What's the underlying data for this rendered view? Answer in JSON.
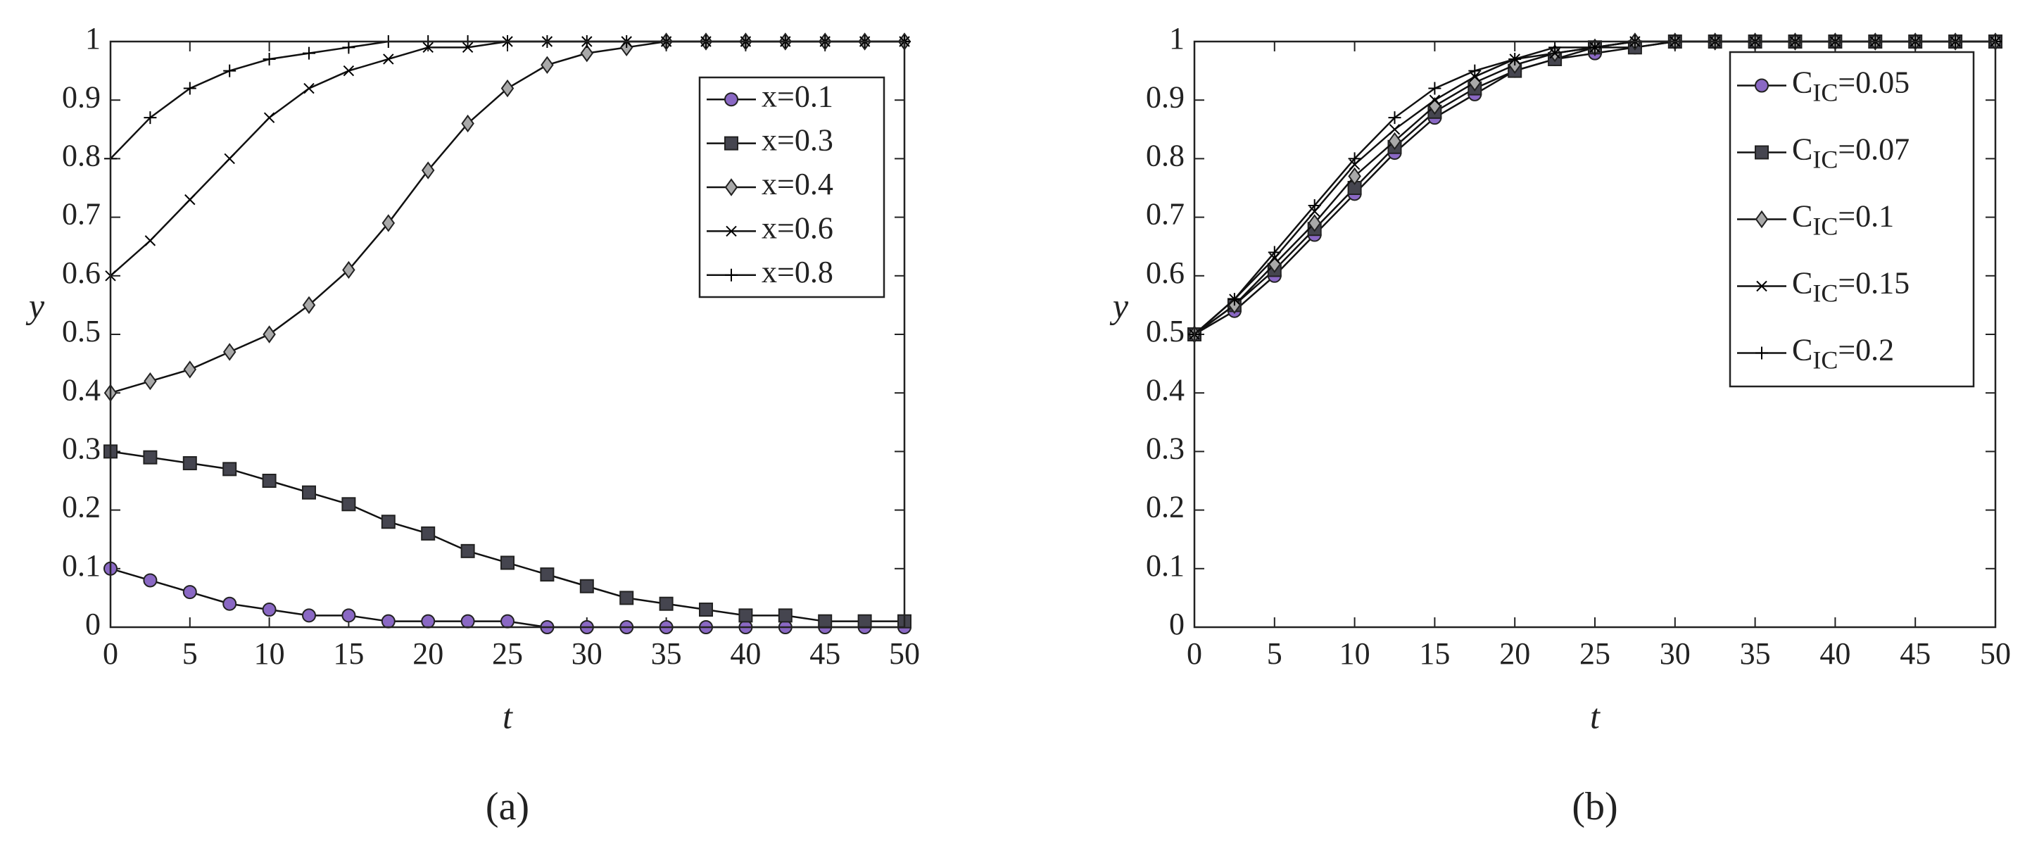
{
  "chart_data": [
    {
      "type": "line",
      "panel_label": "(a)",
      "xlabel": "t",
      "ylabel": "y",
      "x": [
        0,
        2.5,
        5,
        7.5,
        10,
        12.5,
        15,
        17.5,
        20,
        22.5,
        25,
        27.5,
        30,
        32.5,
        35,
        37.5,
        40,
        42.5,
        45,
        47.5,
        50
      ],
      "xlim": [
        0,
        50
      ],
      "xticks": [
        0,
        5,
        10,
        15,
        20,
        25,
        30,
        35,
        40,
        45,
        50
      ],
      "ylim": [
        0,
        1
      ],
      "yticks": [
        0,
        0.1,
        0.2,
        0.3,
        0.4,
        0.5,
        0.6,
        0.7,
        0.8,
        0.9,
        1
      ],
      "legend": "upper right",
      "series": [
        {
          "name": "x=0.1",
          "color": "#8a68c4",
          "marker": "circle",
          "values": [
            0.1,
            0.08,
            0.06,
            0.04,
            0.03,
            0.02,
            0.02,
            0.01,
            0.01,
            0.01,
            0.01,
            0,
            0,
            0,
            0,
            0,
            0,
            0,
            0,
            0,
            0
          ]
        },
        {
          "name": "x=0.3",
          "color": "#45454f",
          "marker": "square",
          "values": [
            0.3,
            0.29,
            0.28,
            0.27,
            0.25,
            0.23,
            0.21,
            0.18,
            0.16,
            0.13,
            0.11,
            0.09,
            0.07,
            0.05,
            0.04,
            0.03,
            0.02,
            0.02,
            0.01,
            0.01,
            0.01
          ]
        },
        {
          "name": "x=0.4",
          "color": "#a9a9a9",
          "marker": "diamond",
          "values": [
            0.4,
            0.42,
            0.44,
            0.47,
            0.5,
            0.55,
            0.61,
            0.69,
            0.78,
            0.86,
            0.92,
            0.96,
            0.98,
            0.99,
            1,
            1,
            1,
            1,
            1,
            1,
            1
          ]
        },
        {
          "name": "x=0.6",
          "color": "#000000",
          "marker": "x",
          "values": [
            0.6,
            0.66,
            0.73,
            0.8,
            0.87,
            0.92,
            0.95,
            0.97,
            0.99,
            0.99,
            1,
            1,
            1,
            1,
            1,
            1,
            1,
            1,
            1,
            1,
            1
          ]
        },
        {
          "name": "x=0.8",
          "color": "#000000",
          "marker": "plus",
          "values": [
            0.8,
            0.87,
            0.92,
            0.95,
            0.97,
            0.98,
            0.99,
            1,
            1,
            1,
            1,
            1,
            1,
            1,
            1,
            1,
            1,
            1,
            1,
            1,
            1
          ]
        }
      ]
    },
    {
      "type": "line",
      "panel_label": "(b)",
      "xlabel": "t",
      "ylabel": "y",
      "x": [
        0,
        2.5,
        5,
        7.5,
        10,
        12.5,
        15,
        17.5,
        20,
        22.5,
        25,
        27.5,
        30,
        32.5,
        35,
        37.5,
        40,
        42.5,
        45,
        47.5,
        50
      ],
      "xlim": [
        0,
        50
      ],
      "xticks": [
        0,
        5,
        10,
        15,
        20,
        25,
        30,
        35,
        40,
        45,
        50
      ],
      "ylim": [
        0,
        1
      ],
      "yticks": [
        0,
        0.1,
        0.2,
        0.3,
        0.4,
        0.5,
        0.6,
        0.7,
        0.8,
        0.9,
        1
      ],
      "legend": "upper right",
      "series": [
        {
          "name": "CIC=0.05",
          "color": "#8a68c4",
          "marker": "circle",
          "values": [
            0.5,
            0.54,
            0.6,
            0.67,
            0.74,
            0.81,
            0.87,
            0.91,
            0.95,
            0.97,
            0.98,
            0.99,
            1,
            1,
            1,
            1,
            1,
            1,
            1,
            1,
            1
          ]
        },
        {
          "name": "CIC=0.07",
          "color": "#45454f",
          "marker": "square",
          "values": [
            0.5,
            0.55,
            0.61,
            0.68,
            0.75,
            0.82,
            0.88,
            0.92,
            0.95,
            0.97,
            0.99,
            0.99,
            1,
            1,
            1,
            1,
            1,
            1,
            1,
            1,
            1
          ]
        },
        {
          "name": "CIC=0.1",
          "color": "#a9a9a9",
          "marker": "diamond",
          "values": [
            0.5,
            0.55,
            0.62,
            0.69,
            0.77,
            0.83,
            0.89,
            0.93,
            0.96,
            0.98,
            0.99,
            1,
            1,
            1,
            1,
            1,
            1,
            1,
            1,
            1,
            1
          ]
        },
        {
          "name": "CIC=0.15",
          "color": "#000000",
          "marker": "x",
          "values": [
            0.5,
            0.56,
            0.63,
            0.71,
            0.79,
            0.85,
            0.9,
            0.94,
            0.97,
            0.98,
            0.99,
            1,
            1,
            1,
            1,
            1,
            1,
            1,
            1,
            1,
            1
          ]
        },
        {
          "name": "CIC=0.2",
          "color": "#000000",
          "marker": "plus",
          "values": [
            0.5,
            0.56,
            0.64,
            0.72,
            0.8,
            0.87,
            0.92,
            0.95,
            0.97,
            0.99,
            0.99,
            1,
            1,
            1,
            1,
            1,
            1,
            1,
            1,
            1,
            1
          ]
        }
      ]
    }
  ]
}
